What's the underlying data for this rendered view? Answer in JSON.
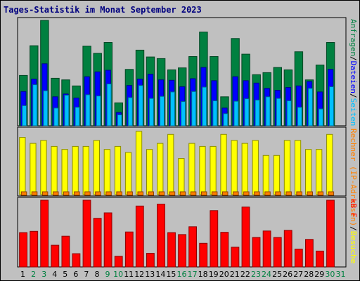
{
  "title": "Tages-Statistik im Monat September 2023",
  "chart_data": [
    {
      "type": "bar",
      "panel": "top",
      "ytick": "262",
      "ylim": [
        0,
        262
      ],
      "legend": [
        {
          "text": "Anfragen",
          "color": "#008040"
        },
        {
          "text": "/",
          "color": "#000000"
        },
        {
          "text": "Dateien",
          "color": "#0000ff"
        },
        {
          "text": "/",
          "color": "#000000"
        },
        {
          "text": "Seiten",
          "color": "#00c0ff"
        }
      ],
      "series": [
        {
          "name": "Anfragen",
          "color": "#008040",
          "values": [
            125,
            199,
            262,
            118,
            114,
            99,
            198,
            180,
            207,
            57,
            140,
            188,
            171,
            167,
            139,
            144,
            172,
            233,
            172,
            72,
            217,
            178,
            127,
            132,
            145,
            139,
            184,
            114,
            151,
            207
          ]
        },
        {
          "name": "Dateien",
          "color": "#0000ff",
          "values": [
            85,
            116,
            154,
            72,
            79,
            69,
            122,
            134,
            138,
            33,
            100,
            116,
            128,
            114,
            113,
            97,
            117,
            145,
            112,
            44,
            122,
            112,
            106,
            93,
            88,
            95,
            99,
            110,
            84,
            140
          ]
        },
        {
          "name": "Seiten",
          "color": "#00c0ff",
          "values": [
            50,
            102,
            87,
            44,
            76,
            46,
            77,
            74,
            104,
            27,
            70,
            100,
            68,
            73,
            84,
            60,
            85,
            96,
            62,
            30,
            61,
            67,
            64,
            72,
            68,
            62,
            46,
            93,
            42,
            97
          ]
        }
      ]
    },
    {
      "type": "bar",
      "panel": "middle",
      "ytick": "21",
      "ylim": [
        0,
        21
      ],
      "legend": [
        {
          "text": "Rechner (IP-Adressen)",
          "color": "#ff8000"
        },
        {
          "text": "/",
          "color": "#000000"
        },
        {
          "text": "Besuche",
          "color": "#ffff00"
        }
      ],
      "series": [
        {
          "name": "Besuche",
          "color": "#ffff00",
          "values": [
            19,
            17,
            18,
            16,
            15,
            16,
            16,
            18,
            15,
            16,
            14,
            21,
            15,
            17,
            20,
            12,
            17,
            16,
            16,
            20,
            18,
            17,
            18,
            13,
            13,
            18,
            18,
            15,
            15,
            20
          ]
        },
        {
          "name": "Rechner (IP-Adressen)",
          "color": "#ff8000",
          "values": [
            1,
            1,
            1,
            1,
            1,
            1,
            1,
            1,
            1,
            1,
            1,
            1,
            1,
            1,
            1,
            1,
            1,
            1,
            1,
            1,
            1,
            1,
            1,
            1,
            1,
            1,
            1,
            1,
            1,
            1
          ]
        }
      ]
    },
    {
      "type": "bar",
      "panel": "bottom",
      "ytick": "2060",
      "ylim": [
        0,
        2060
      ],
      "legend": [
        {
          "text": "kB F",
          "color": "#ff0000"
        }
      ],
      "series": [
        {
          "name": "kB F",
          "color": "#ff0000",
          "values": [
            1060,
            1100,
            2060,
            670,
            950,
            410,
            2060,
            1500,
            1670,
            330,
            1080,
            1880,
            420,
            1940,
            1060,
            1000,
            1240,
            730,
            1740,
            1070,
            610,
            1850,
            910,
            1110,
            910,
            1130,
            550,
            850,
            490,
            2060
          ]
        }
      ]
    }
  ],
  "x_categories": [
    "1",
    "2",
    "3",
    "4",
    "5",
    "6",
    "7",
    "8",
    "9",
    "10",
    "11",
    "12",
    "13",
    "14",
    "15",
    "16",
    "17",
    "18",
    "19",
    "20",
    "21",
    "22",
    "23",
    "24",
    "25",
    "26",
    "27",
    "28",
    "29",
    "30",
    "31"
  ],
  "weekend_days": [
    "2",
    "3",
    "9",
    "10",
    "16",
    "17",
    "23",
    "24",
    "30",
    "31"
  ],
  "colors": {
    "weekday": "#000000",
    "weekend": "#008040",
    "panel_bg": "#c0c0c0",
    "grid": "#000000"
  }
}
